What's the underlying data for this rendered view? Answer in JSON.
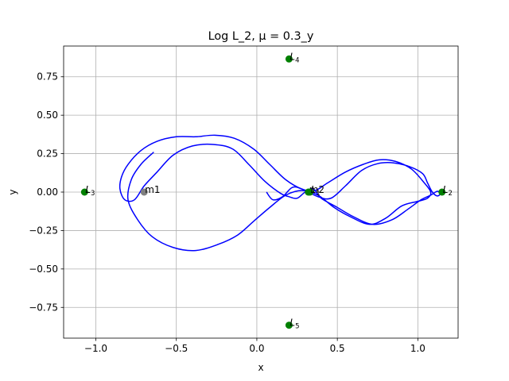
{
  "chart_data": {
    "type": "scatter",
    "title": "Log L_2, μ = 0.3_y",
    "xlabel": "x",
    "ylabel": "y",
    "xlim": [
      -1.2,
      1.25
    ],
    "ylim": [
      -0.95,
      0.95
    ],
    "xticks": [
      -1.0,
      -0.5,
      0.0,
      0.5,
      1.0
    ],
    "xtick_labels": [
      "−1.0",
      "−0.5",
      "0.0",
      "0.5",
      "1.0"
    ],
    "yticks": [
      0.75,
      0.5,
      0.25,
      0.0,
      -0.25,
      -0.5,
      -0.75
    ],
    "ytick_labels": [
      "0.75",
      "0.50",
      "0.25",
      "0.00",
      "−0.25",
      "−0.50",
      "−0.75"
    ],
    "grid": true,
    "series": [
      {
        "kind": "line",
        "color": "#0000ff",
        "points": [
          [
            0.06,
            0.0
          ],
          [
            0.1,
            -0.05
          ],
          [
            0.16,
            -0.03
          ],
          [
            0.22,
            0.03
          ],
          [
            0.28,
            0.02
          ],
          [
            0.38,
            -0.03
          ],
          [
            0.46,
            -0.04
          ],
          [
            0.55,
            0.04
          ],
          [
            0.65,
            0.14
          ],
          [
            0.75,
            0.185
          ],
          [
            0.85,
            0.19
          ],
          [
            0.95,
            0.165
          ],
          [
            1.03,
            0.12
          ],
          [
            1.06,
            0.06
          ],
          [
            1.09,
            0.0
          ],
          [
            1.12,
            -0.025
          ],
          [
            1.14,
            -0.01
          ],
          [
            1.12,
            0.005
          ],
          [
            1.08,
            -0.02
          ],
          [
            1.02,
            -0.05
          ],
          [
            0.94,
            -0.11
          ],
          [
            0.84,
            -0.18
          ],
          [
            0.72,
            -0.21
          ],
          [
            0.6,
            -0.16
          ],
          [
            0.5,
            -0.1
          ],
          [
            0.4,
            -0.04
          ],
          [
            0.35,
            0.02
          ],
          [
            0.3,
            0.0
          ],
          [
            0.25,
            -0.04
          ],
          [
            0.2,
            -0.03
          ],
          [
            0.15,
            -0.01
          ],
          [
            0.05,
            0.07
          ],
          [
            -0.05,
            0.18
          ],
          [
            -0.15,
            0.28
          ],
          [
            -0.27,
            0.31
          ],
          [
            -0.4,
            0.3
          ],
          [
            -0.52,
            0.24
          ],
          [
            -0.62,
            0.13
          ],
          [
            -0.7,
            0.04
          ],
          [
            -0.76,
            -0.05
          ],
          [
            -0.82,
            -0.05
          ],
          [
            -0.85,
            0.02
          ],
          [
            -0.84,
            0.1
          ],
          [
            -0.8,
            0.18
          ],
          [
            -0.72,
            0.27
          ],
          [
            -0.62,
            0.33
          ],
          [
            -0.5,
            0.36
          ],
          [
            -0.38,
            0.36
          ],
          [
            -0.26,
            0.37
          ],
          [
            -0.14,
            0.35
          ],
          [
            -0.02,
            0.28
          ],
          [
            0.08,
            0.18
          ],
          [
            0.18,
            0.08
          ],
          [
            0.28,
            0.02
          ],
          [
            0.36,
            0.01
          ],
          [
            0.44,
            0.06
          ],
          [
            0.55,
            0.13
          ],
          [
            0.66,
            0.18
          ],
          [
            0.76,
            0.21
          ],
          [
            0.86,
            0.2
          ],
          [
            0.96,
            0.15
          ],
          [
            1.04,
            0.06
          ],
          [
            1.08,
            0.0
          ],
          [
            1.06,
            -0.04
          ],
          [
            1.0,
            -0.06
          ],
          [
            0.9,
            -0.09
          ],
          [
            0.8,
            -0.17
          ],
          [
            0.7,
            -0.21
          ],
          [
            0.58,
            -0.16
          ],
          [
            0.48,
            -0.1
          ],
          [
            0.38,
            -0.02
          ],
          [
            0.28,
            0.01
          ],
          [
            0.18,
            -0.02
          ],
          [
            0.08,
            -0.1
          ],
          [
            -0.02,
            -0.19
          ],
          [
            -0.12,
            -0.28
          ],
          [
            -0.24,
            -0.34
          ],
          [
            -0.38,
            -0.38
          ],
          [
            -0.52,
            -0.36
          ],
          [
            -0.65,
            -0.29
          ],
          [
            -0.74,
            -0.18
          ],
          [
            -0.8,
            -0.05
          ],
          [
            -0.78,
            0.08
          ],
          [
            -0.72,
            0.18
          ],
          [
            -0.64,
            0.26
          ]
        ]
      }
    ],
    "points": [
      {
        "label": "m1",
        "x": -0.7,
        "y": 0.0,
        "color": "#808080"
      },
      {
        "label": "m2",
        "x": 0.32,
        "y": 0.0,
        "color": "#008000"
      },
      {
        "label": "L1",
        "x": 0.33,
        "y": 0.0,
        "color": "#008000"
      },
      {
        "label": "L2",
        "x": 1.15,
        "y": 0.0,
        "color": "#008000"
      },
      {
        "label": "L3",
        "x": -1.07,
        "y": 0.0,
        "color": "#008000"
      },
      {
        "label": "L4",
        "x": 0.2,
        "y": 0.866,
        "color": "#008000"
      },
      {
        "label": "L5",
        "x": 0.2,
        "y": -0.866,
        "color": "#008000"
      }
    ]
  }
}
